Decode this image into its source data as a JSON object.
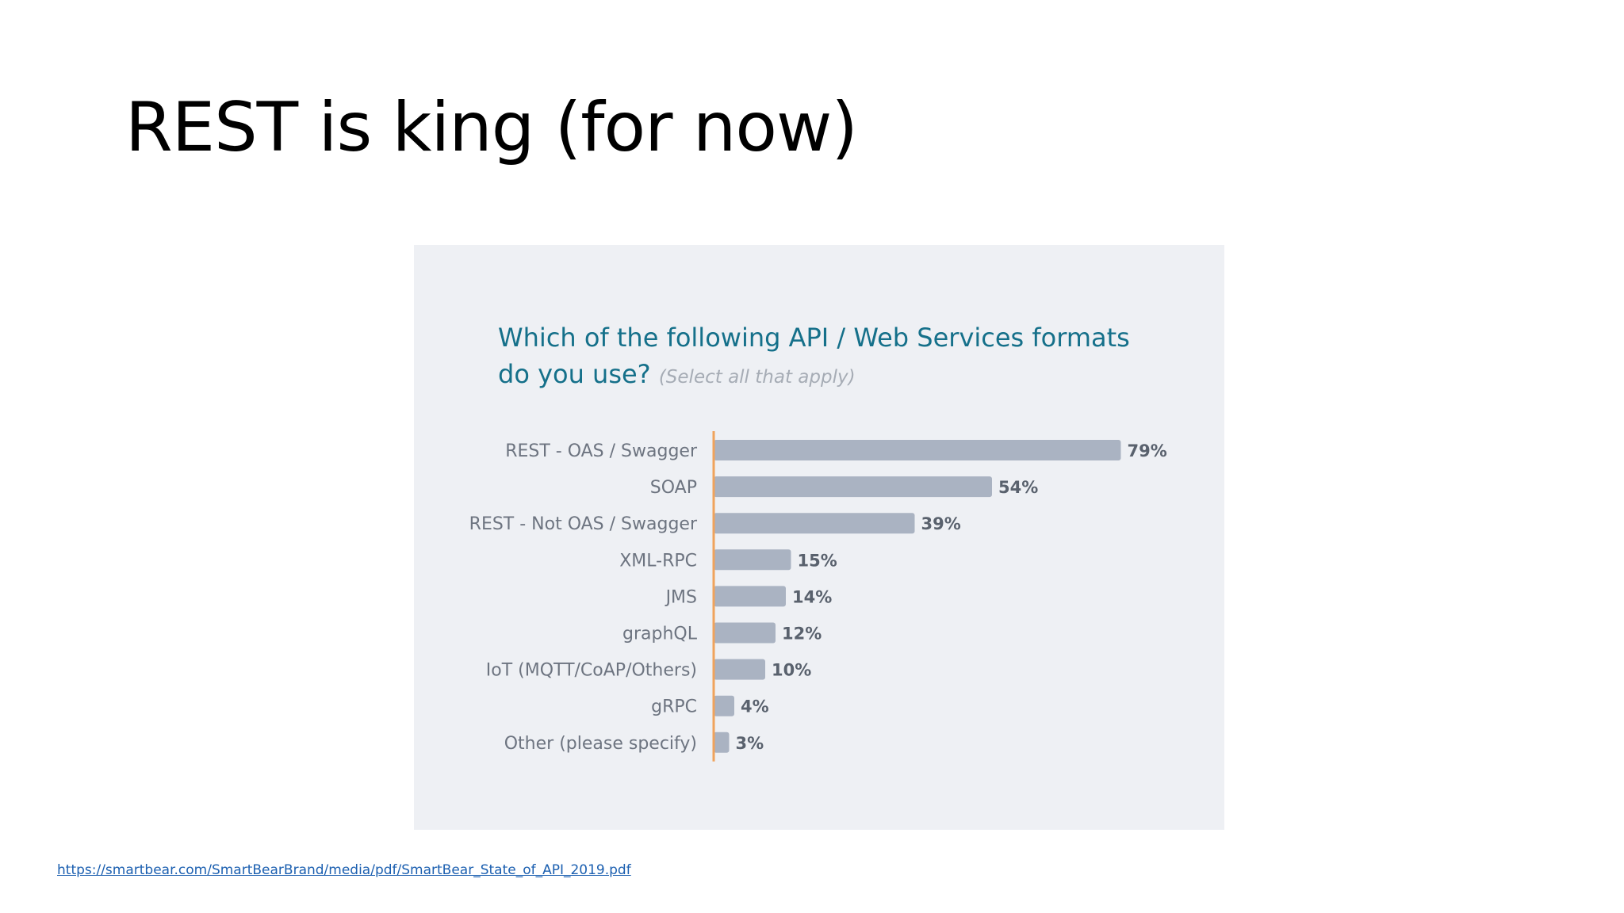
{
  "slide": {
    "title": "REST is king (for now)",
    "source_url": "https://smartbear.com/SmartBearBrand/media/pdf/SmartBear_State_of_API_2019.pdf"
  },
  "chart_data": {
    "type": "bar",
    "orientation": "horizontal",
    "title_line1": "Which of the following API / Web Services formats",
    "title_line2": "do you use?",
    "subtitle": "(Select all that apply)",
    "categories": [
      "REST - OAS / Swagger",
      "SOAP",
      "REST - Not OAS / Swagger",
      "XML-RPC",
      "JMS",
      "graphQL",
      "IoT (MQTT/CoAP/Others)",
      "gRPC",
      "Other (please specify)"
    ],
    "values": [
      79,
      54,
      39,
      15,
      14,
      12,
      10,
      4,
      3
    ],
    "value_labels": [
      "79%",
      "54%",
      "39%",
      "15%",
      "14%",
      "12%",
      "10%",
      "4%",
      "3%"
    ],
    "unit": "%",
    "xlim": [
      0,
      100
    ],
    "grid": false,
    "legend": "none",
    "colors": {
      "bar": "#aab3c2",
      "axis": "#f0a35c",
      "title": "#15708a",
      "subtitle": "#a6acb5",
      "background": "#eef0f4"
    }
  }
}
